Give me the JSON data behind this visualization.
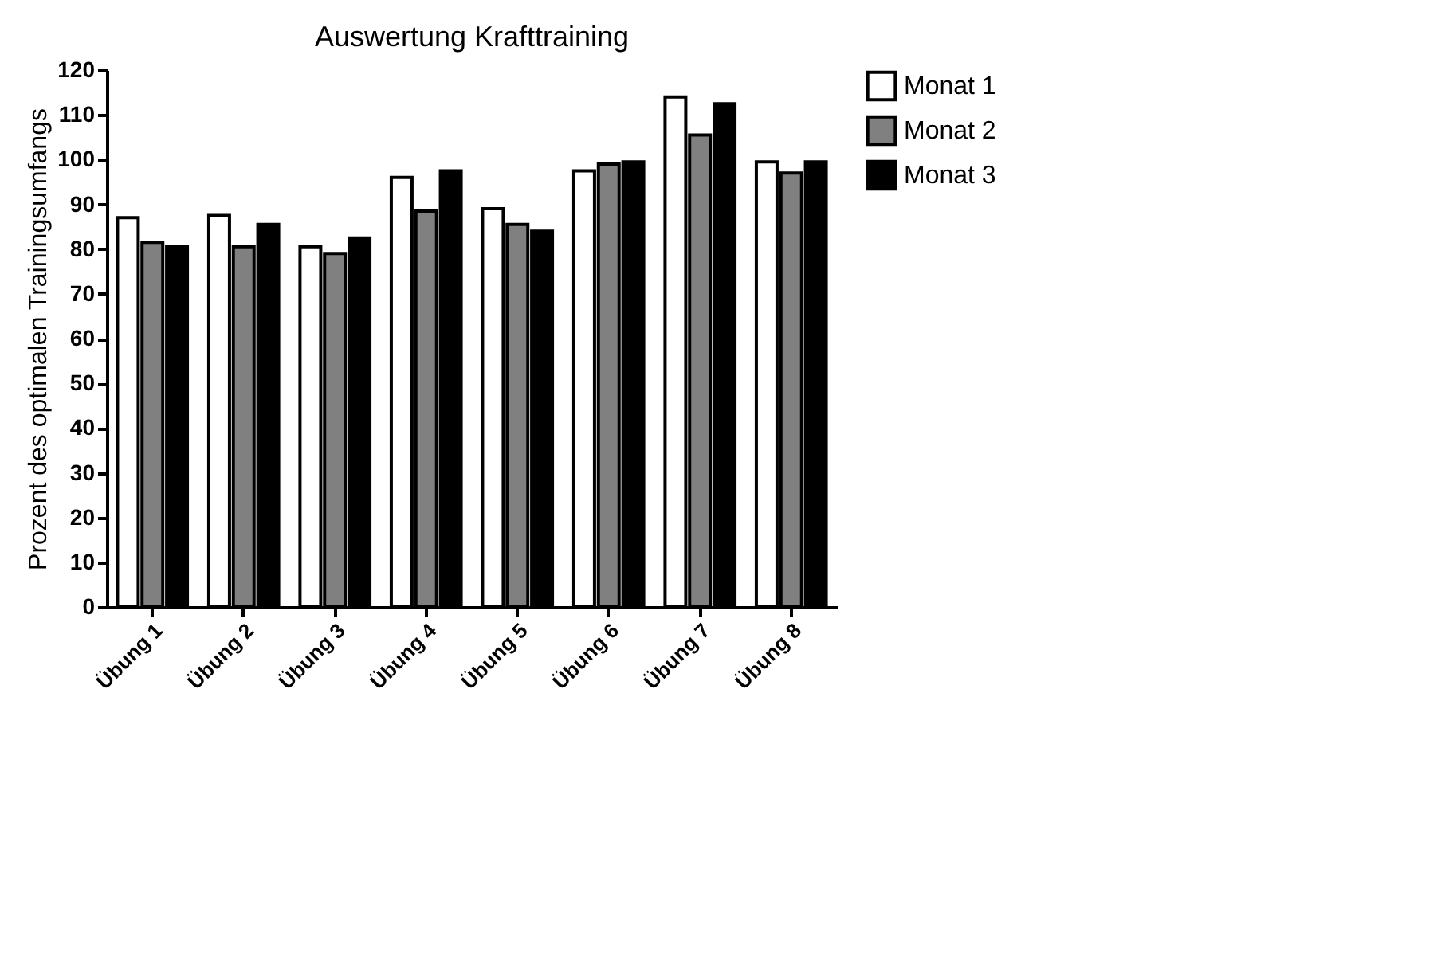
{
  "chart_data": {
    "type": "bar",
    "title": "Auswertung Krafttraining",
    "ylabel": "Prozent des optimalen Trainingsumfangs",
    "categories": [
      "Übung 1",
      "Übung 2",
      "Übung 3",
      "Übung 4",
      "Übung 5",
      "Übung 6",
      "Übung 7",
      "Übung 8"
    ],
    "series": [
      {
        "name": "Monat 1",
        "color": "#ffffff",
        "values": [
          87,
          87.5,
          80.5,
          96,
          89,
          97.5,
          114,
          99.5
        ]
      },
      {
        "name": "Monat 2",
        "color": "#808080",
        "values": [
          81.5,
          80.5,
          79,
          88.5,
          85.5,
          99,
          105.5,
          97
        ]
      },
      {
        "name": "Monat 3",
        "color": "#000000",
        "values": [
          80.5,
          85.5,
          82.5,
          97.5,
          84,
          99.5,
          112.5,
          99.5
        ]
      }
    ],
    "ylim": [
      0,
      120
    ],
    "yticks": [
      0,
      10,
      20,
      30,
      40,
      50,
      60,
      70,
      80,
      90,
      100,
      110,
      120
    ],
    "grid": false,
    "legend": "right"
  }
}
